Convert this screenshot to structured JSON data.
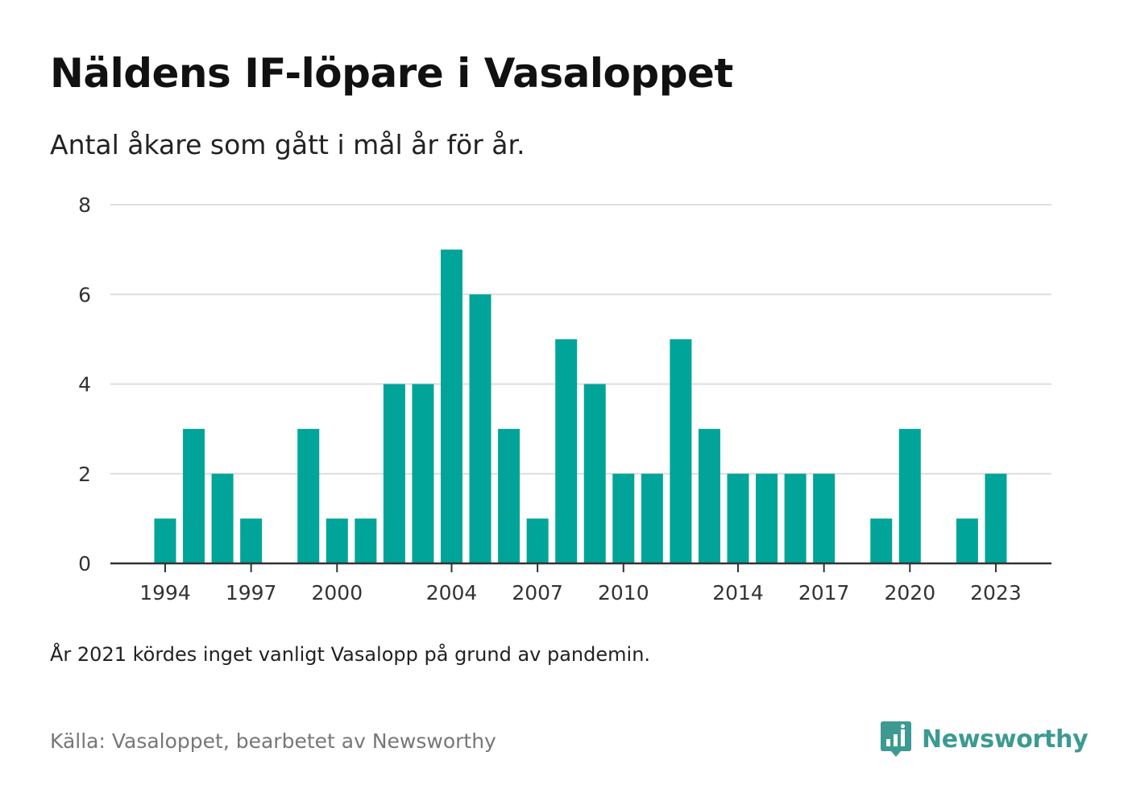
{
  "title": "Näldens IF-löpare i Vasaloppet",
  "subtitle": "Antal åkare som gått i mål år för år.",
  "note": "År 2021 kördes inget vanligt Vasalopp på grund av pandemin.",
  "source": "Källa: Vasaloppet, bearbetet av Newsworthy",
  "brand": {
    "name": "Newsworthy",
    "icon": "newsworthy-logo-icon",
    "color": "#3d9a92"
  },
  "chart_data": {
    "type": "bar",
    "x": [
      1994,
      1995,
      1996,
      1997,
      1998,
      1999,
      2000,
      2001,
      2002,
      2003,
      2004,
      2005,
      2006,
      2007,
      2008,
      2009,
      2010,
      2011,
      2012,
      2013,
      2014,
      2015,
      2016,
      2017,
      2018,
      2019,
      2020,
      2021,
      2022,
      2023
    ],
    "values": [
      1,
      3,
      2,
      1,
      null,
      3,
      1,
      1,
      4,
      4,
      7,
      6,
      3,
      1,
      5,
      4,
      2,
      2,
      5,
      3,
      2,
      2,
      2,
      2,
      null,
      1,
      3,
      null,
      1,
      2
    ],
    "x_tick_labels": [
      1994,
      1997,
      2000,
      2004,
      2007,
      2010,
      2014,
      2017,
      2020,
      2023
    ],
    "y_ticks": [
      0,
      2,
      4,
      6,
      8
    ],
    "ylim": [
      0,
      8
    ],
    "xlabel": "",
    "ylabel": "",
    "grid": true,
    "bar_color": "#00a499",
    "grid_color": "#dddddd",
    "axis_color": "#333333"
  }
}
